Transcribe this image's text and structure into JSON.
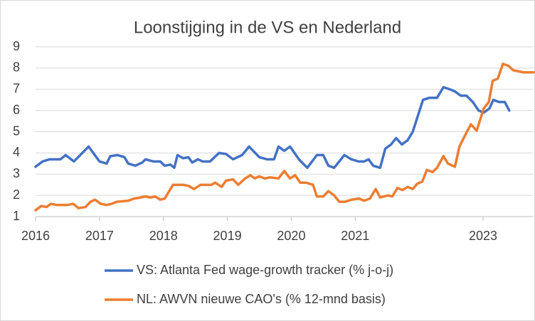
{
  "chart_data": {
    "type": "line",
    "title": "Loonstijging in de VS en Nederland",
    "xlim": [
      2016,
      2023.79
    ],
    "xticks": [
      2016,
      2017,
      2018,
      2019,
      2020,
      2021,
      2023
    ],
    "ylim": [
      1,
      9
    ],
    "yticks": [
      1,
      2,
      3,
      4,
      5,
      6,
      7,
      8,
      9
    ],
    "grid": true,
    "legend": "bottom",
    "series": [
      {
        "name": "VS: Atlanta Fed wage-growth tracker (% j-o-j)",
        "color": "#4472c4",
        "x": [
          2016.0,
          2016.11,
          2016.22,
          2016.39,
          2016.47,
          2016.6,
          2016.83,
          2017.0,
          2017.11,
          2017.17,
          2017.28,
          2017.39,
          2017.45,
          2017.56,
          2017.67,
          2017.72,
          2017.84,
          2017.95,
          2018.02,
          2018.11,
          2018.17,
          2018.22,
          2018.31,
          2018.39,
          2018.45,
          2018.54,
          2018.61,
          2018.73,
          2018.87,
          2018.98,
          2019.09,
          2019.23,
          2019.34,
          2019.5,
          2019.62,
          2019.73,
          2019.8,
          2019.89,
          2019.98,
          2020.12,
          2020.25,
          2020.4,
          2020.5,
          2020.58,
          2020.67,
          2020.83,
          2020.94,
          2021.05,
          2021.14,
          2021.21,
          2021.28,
          2021.39,
          2021.47,
          2021.56,
          2021.64,
          2021.73,
          2021.82,
          2021.9,
          2022.06,
          2022.16,
          2022.28,
          2022.38,
          2022.48,
          2022.56,
          2022.65,
          2022.74,
          2022.84,
          2022.93,
          2023.01,
          2023.1,
          2023.16,
          2023.25,
          2023.34,
          2023.41
        ],
        "values": [
          3.35,
          3.6,
          3.7,
          3.7,
          3.9,
          3.6,
          4.3,
          3.6,
          3.5,
          3.85,
          3.9,
          3.8,
          3.5,
          3.4,
          3.55,
          3.7,
          3.6,
          3.6,
          3.4,
          3.45,
          3.3,
          3.9,
          3.75,
          3.8,
          3.55,
          3.7,
          3.6,
          3.6,
          4.0,
          3.95,
          3.7,
          3.9,
          4.3,
          3.8,
          3.7,
          3.7,
          4.3,
          4.1,
          4.3,
          3.7,
          3.3,
          3.9,
          3.9,
          3.4,
          3.3,
          3.9,
          3.7,
          3.6,
          3.6,
          3.7,
          3.4,
          3.3,
          4.2,
          4.4,
          4.7,
          4.4,
          4.6,
          5.0,
          6.5,
          6.6,
          6.6,
          7.1,
          7.0,
          6.9,
          6.7,
          6.7,
          6.4,
          6.0,
          5.9,
          6.1,
          6.5,
          6.4,
          6.4,
          6.0
        ]
      },
      {
        "name": "NL: AWVN nieuwe CAO's (% 12-mnd basis)",
        "color": "#ed7d31",
        "x": [
          2016.0,
          2016.09,
          2016.17,
          2016.24,
          2016.33,
          2016.5,
          2016.59,
          2016.67,
          2016.78,
          2016.86,
          2016.93,
          2017.02,
          2017.11,
          2017.19,
          2017.27,
          2017.45,
          2017.54,
          2017.64,
          2017.72,
          2017.8,
          2017.87,
          2017.95,
          2018.02,
          2018.15,
          2018.31,
          2018.39,
          2018.48,
          2018.58,
          2018.75,
          2018.81,
          2018.91,
          2018.98,
          2019.09,
          2019.17,
          2019.28,
          2019.36,
          2019.43,
          2019.5,
          2019.58,
          2019.67,
          2019.8,
          2019.89,
          2019.98,
          2020.06,
          2020.14,
          2020.23,
          2020.34,
          2020.4,
          2020.5,
          2020.58,
          2020.67,
          2020.75,
          2020.84,
          2020.95,
          2021.06,
          2021.14,
          2021.23,
          2021.32,
          2021.39,
          2021.51,
          2021.58,
          2021.66,
          2021.74,
          2021.82,
          2021.9,
          2021.97,
          2022.05,
          2022.12,
          2022.21,
          2022.28,
          2022.38,
          2022.45,
          2022.56,
          2022.63,
          2022.73,
          2022.81,
          2022.9,
          2023.01,
          2023.09,
          2023.15,
          2023.23,
          2023.31,
          2023.4,
          2023.47,
          2023.63,
          2023.79
        ],
        "values": [
          1.3,
          1.5,
          1.45,
          1.6,
          1.55,
          1.55,
          1.6,
          1.4,
          1.45,
          1.7,
          1.8,
          1.6,
          1.55,
          1.6,
          1.7,
          1.75,
          1.85,
          1.9,
          1.95,
          1.9,
          1.95,
          1.8,
          1.85,
          2.5,
          2.5,
          2.45,
          2.3,
          2.5,
          2.5,
          2.6,
          2.4,
          2.7,
          2.75,
          2.5,
          2.8,
          2.95,
          2.8,
          2.9,
          2.8,
          2.85,
          2.8,
          3.15,
          2.8,
          2.95,
          2.6,
          2.6,
          2.5,
          1.95,
          1.95,
          2.2,
          2.0,
          1.7,
          1.7,
          1.8,
          1.85,
          1.75,
          1.85,
          2.3,
          1.9,
          2.0,
          1.95,
          2.35,
          2.25,
          2.4,
          2.3,
          2.55,
          2.65,
          3.2,
          3.1,
          3.3,
          3.85,
          3.5,
          3.35,
          4.3,
          4.9,
          5.35,
          5.05,
          6.1,
          6.4,
          7.4,
          7.5,
          8.2,
          8.1,
          7.9,
          7.8,
          7.8
        ]
      }
    ]
  }
}
